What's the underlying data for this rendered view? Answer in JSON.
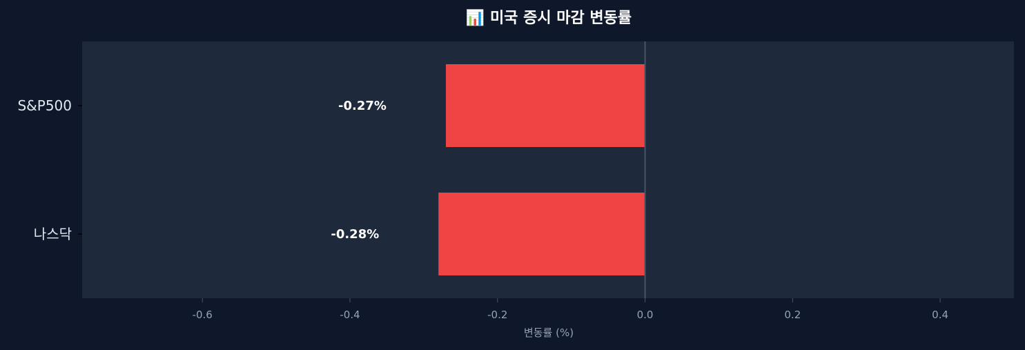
{
  "chart_data": {
    "type": "bar",
    "orientation": "horizontal",
    "title": "📊 미국 증시 마감 변동률",
    "xlabel": "변동률 (%)",
    "ylabel": "",
    "categories": [
      "S&P500",
      "나스닥"
    ],
    "values": [
      -0.27,
      -0.28
    ],
    "data_labels": [
      "-0.27%",
      "-0.28%"
    ],
    "xlim": [
      -0.763,
      0.5
    ],
    "xticks": [
      -0.6,
      -0.4,
      -0.2,
      0.0,
      0.2,
      0.4
    ],
    "xtick_labels": [
      "-0.6",
      "-0.4",
      "-0.2",
      "0.0",
      "0.2",
      "0.4"
    ],
    "grid": false,
    "zero_line": true,
    "colors": {
      "background": "#0f172a",
      "plot_background": "#1e293b",
      "negative_bar": "#ef4444",
      "zero_line": "#475569",
      "text": "#e2e8f0",
      "tick_text": "#94a3b8"
    }
  }
}
